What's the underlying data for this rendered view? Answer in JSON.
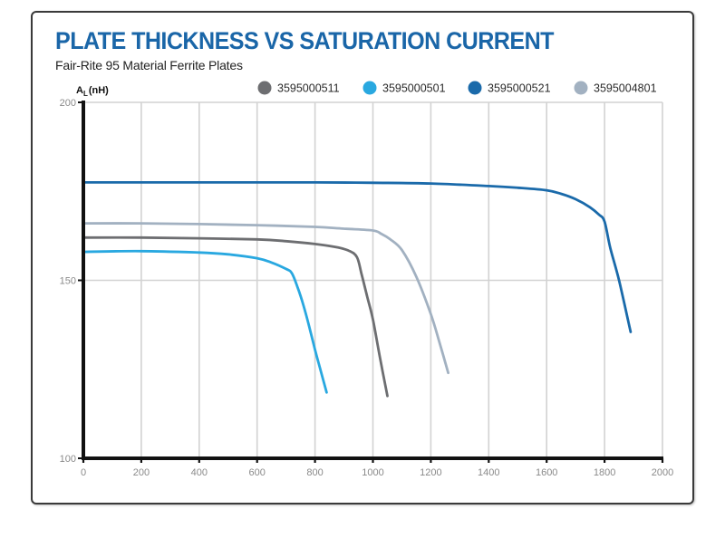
{
  "chart_data": {
    "type": "line",
    "title": "PLATE THICKNESS VS SATURATION CURRENT",
    "subtitle": "Fair-Rite 95 Material Ferrite Plates",
    "xlabel": "",
    "ylabel": {
      "main": "A",
      "sub": "L",
      "unit": "(nH)"
    },
    "xlim": [
      0,
      2000
    ],
    "ylim": [
      100,
      200
    ],
    "xticks": [
      0,
      200,
      400,
      600,
      800,
      1000,
      1200,
      1400,
      1600,
      1800,
      2000
    ],
    "yticks": [
      100,
      150,
      200
    ],
    "grid": true,
    "legend_position": "top-right",
    "series": [
      {
        "name": "3595000511",
        "color": "#6d6e71",
        "x": [
          0,
          200,
          400,
          600,
          700,
          800,
          880,
          920,
          945,
          960,
          980,
          1000,
          1025,
          1050
        ],
        "y": [
          162,
          162,
          161.8,
          161.5,
          161,
          160.2,
          159.2,
          158.2,
          156.5,
          152,
          145.5,
          139,
          128,
          117.5
        ]
      },
      {
        "name": "3595000501",
        "color": "#29a8e0",
        "x": [
          0,
          200,
          400,
          500,
          600,
          650,
          700,
          720,
          740,
          760,
          780,
          800,
          820,
          840
        ],
        "y": [
          158,
          158.2,
          157.8,
          157.3,
          156.2,
          155,
          153.2,
          152,
          148,
          143,
          137,
          130.5,
          124.5,
          118.5
        ]
      },
      {
        "name": "3595000521",
        "color": "#1a6aaa",
        "x": [
          0,
          400,
          800,
          1000,
          1200,
          1400,
          1500,
          1600,
          1650,
          1700,
          1750,
          1780,
          1800,
          1820,
          1850,
          1890
        ],
        "y": [
          177.5,
          177.5,
          177.5,
          177.4,
          177.2,
          176.5,
          176,
          175.3,
          174.3,
          172.8,
          170.5,
          168.5,
          166.5,
          159,
          150,
          135.5
        ]
      },
      {
        "name": "3595004801",
        "color": "#a2b1c1",
        "x": [
          0,
          200,
          400,
          600,
          800,
          900,
          1000,
          1030,
          1060,
          1100,
          1150,
          1200,
          1230,
          1260
        ],
        "y": [
          166,
          166,
          165.8,
          165.5,
          165,
          164.5,
          164,
          163,
          161.5,
          158.5,
          151,
          140.5,
          132.5,
          124
        ]
      }
    ]
  }
}
